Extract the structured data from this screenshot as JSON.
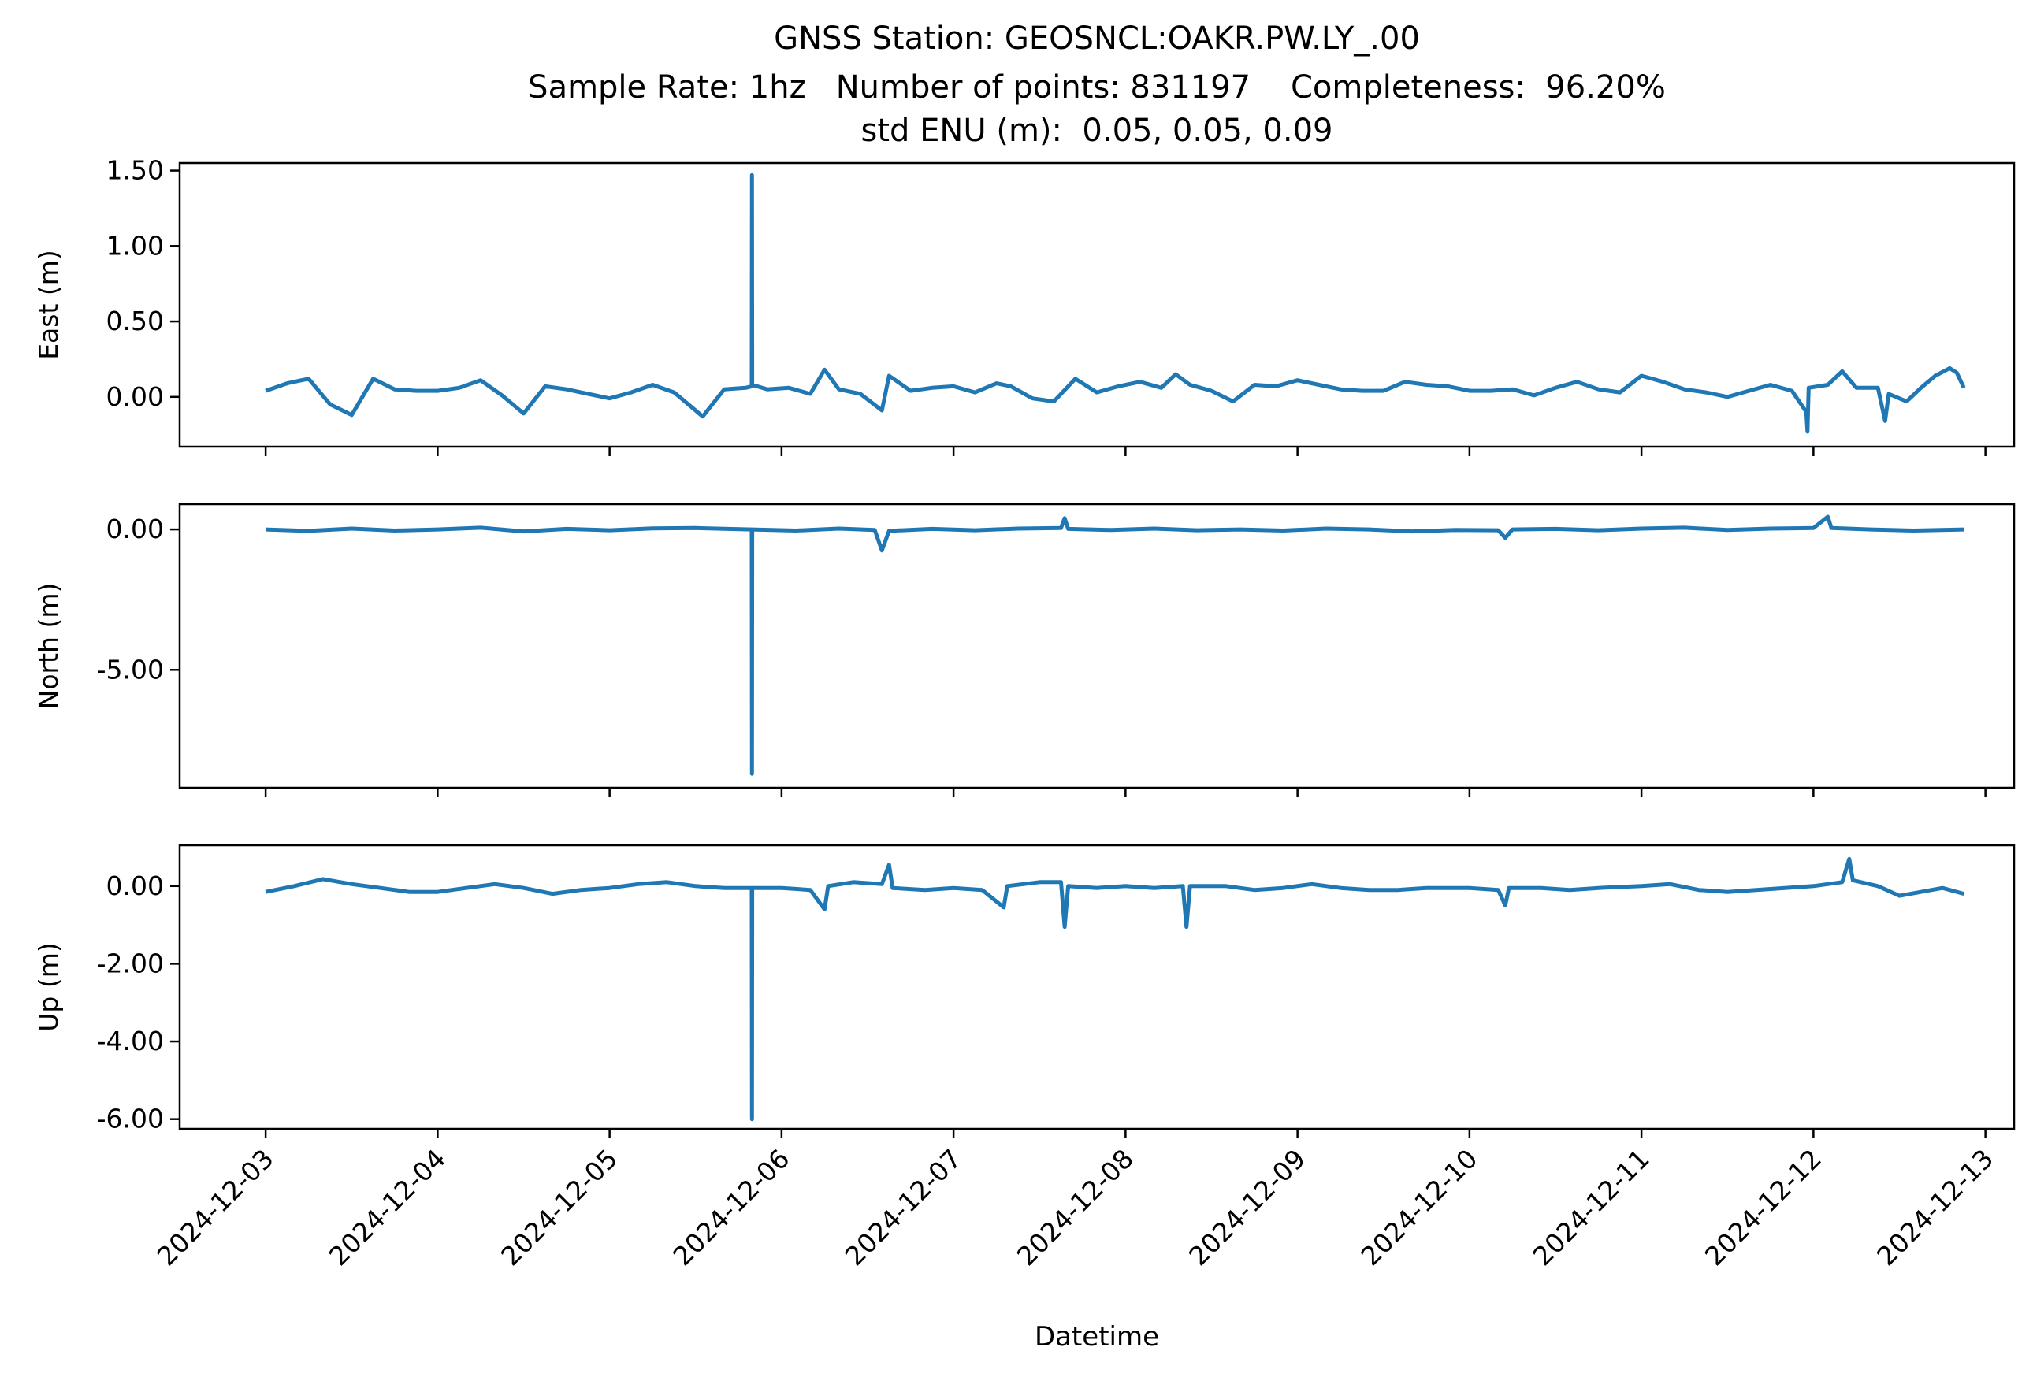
{
  "figure": {
    "title_lines": [
      "GNSS Station: GEOSNCL:OAKR.PW.LY_.00",
      "Sample Rate: 1hz   Number of points: 831197    Completeness:  96.20%",
      "std ENU (m):  0.05, 0.05, 0.09"
    ],
    "xlabel": "Datetime",
    "line_color": "#1f77b4"
  },
  "chart_data": [
    {
      "type": "line",
      "ylabel": "East (m)",
      "xlim": [
        "2024-12-02T12:00",
        "2024-12-13T04:00"
      ],
      "ylim": [
        -0.33,
        1.55
      ],
      "yticks": [
        0.0,
        0.5,
        1.0,
        1.5
      ],
      "ytick_labels": [
        "0.00",
        "0.50",
        "1.00",
        "1.50"
      ],
      "show_xtick_labels": false,
      "series": [
        {
          "values": [
            [
              "2024-12-03T00:00",
              0.04
            ],
            [
              "2024-12-03T03:00",
              0.09
            ],
            [
              "2024-12-03T06:00",
              0.12
            ],
            [
              "2024-12-03T09:00",
              -0.05
            ],
            [
              "2024-12-03T12:00",
              -0.12
            ],
            [
              "2024-12-03T15:00",
              0.12
            ],
            [
              "2024-12-03T18:00",
              0.05
            ],
            [
              "2024-12-03T21:00",
              0.04
            ],
            [
              "2024-12-04T00:00",
              0.04
            ],
            [
              "2024-12-04T03:00",
              0.06
            ],
            [
              "2024-12-04T06:00",
              0.11
            ],
            [
              "2024-12-04T09:00",
              0.01
            ],
            [
              "2024-12-04T12:00",
              -0.11
            ],
            [
              "2024-12-04T15:00",
              0.07
            ],
            [
              "2024-12-04T18:00",
              0.05
            ],
            [
              "2024-12-04T21:00",
              0.02
            ],
            [
              "2024-12-05T00:00",
              -0.01
            ],
            [
              "2024-12-05T03:00",
              0.03
            ],
            [
              "2024-12-05T06:00",
              0.08
            ],
            [
              "2024-12-05T09:00",
              0.03
            ],
            [
              "2024-12-05T11:00",
              -0.05
            ],
            [
              "2024-12-05T13:00",
              -0.13
            ],
            [
              "2024-12-05T16:00",
              0.05
            ],
            [
              "2024-12-05T19:00",
              0.06
            ],
            [
              "2024-12-05T19:50",
              0.07
            ],
            [
              "2024-12-05T19:52",
              1.47
            ],
            [
              "2024-12-05T19:54",
              0.08
            ],
            [
              "2024-12-05T22:00",
              0.05
            ],
            [
              "2024-12-06T01:00",
              0.06
            ],
            [
              "2024-12-06T04:00",
              0.02
            ],
            [
              "2024-12-06T06:00",
              0.18
            ],
            [
              "2024-12-06T08:00",
              0.05
            ],
            [
              "2024-12-06T11:00",
              0.02
            ],
            [
              "2024-12-06T14:00",
              -0.09
            ],
            [
              "2024-12-06T15:00",
              0.14
            ],
            [
              "2024-12-06T18:00",
              0.04
            ],
            [
              "2024-12-06T21:00",
              0.06
            ],
            [
              "2024-12-07T00:00",
              0.07
            ],
            [
              "2024-12-07T03:00",
              0.03
            ],
            [
              "2024-12-07T06:00",
              0.09
            ],
            [
              "2024-12-07T08:00",
              0.07
            ],
            [
              "2024-12-07T11:00",
              -0.01
            ],
            [
              "2024-12-07T14:00",
              -0.03
            ],
            [
              "2024-12-07T17:00",
              0.12
            ],
            [
              "2024-12-07T20:00",
              0.03
            ],
            [
              "2024-12-07T23:00",
              0.07
            ],
            [
              "2024-12-08T02:00",
              0.1
            ],
            [
              "2024-12-08T05:00",
              0.06
            ],
            [
              "2024-12-08T07:00",
              0.15
            ],
            [
              "2024-12-08T09:00",
              0.08
            ],
            [
              "2024-12-08T12:00",
              0.04
            ],
            [
              "2024-12-08T15:00",
              -0.03
            ],
            [
              "2024-12-08T18:00",
              0.08
            ],
            [
              "2024-12-08T21:00",
              0.07
            ],
            [
              "2024-12-09T00:00",
              0.11
            ],
            [
              "2024-12-09T03:00",
              0.08
            ],
            [
              "2024-12-09T06:00",
              0.05
            ],
            [
              "2024-12-09T09:00",
              0.04
            ],
            [
              "2024-12-09T12:00",
              0.04
            ],
            [
              "2024-12-09T15:00",
              0.1
            ],
            [
              "2024-12-09T18:00",
              0.08
            ],
            [
              "2024-12-09T21:00",
              0.07
            ],
            [
              "2024-12-10T00:00",
              0.04
            ],
            [
              "2024-12-10T03:00",
              0.04
            ],
            [
              "2024-12-10T06:00",
              0.05
            ],
            [
              "2024-12-10T09:00",
              0.01
            ],
            [
              "2024-12-10T12:00",
              0.06
            ],
            [
              "2024-12-10T15:00",
              0.1
            ],
            [
              "2024-12-10T18:00",
              0.05
            ],
            [
              "2024-12-10T21:00",
              0.03
            ],
            [
              "2024-12-11T00:00",
              0.14
            ],
            [
              "2024-12-11T03:00",
              0.1
            ],
            [
              "2024-12-11T06:00",
              0.05
            ],
            [
              "2024-12-11T09:00",
              0.03
            ],
            [
              "2024-12-11T12:00",
              0.0
            ],
            [
              "2024-12-11T15:00",
              0.04
            ],
            [
              "2024-12-11T18:00",
              0.08
            ],
            [
              "2024-12-11T21:00",
              0.04
            ],
            [
              "2024-12-11T23:00",
              -0.1
            ],
            [
              "2024-12-11T23:10",
              -0.23
            ],
            [
              "2024-12-11T23:20",
              0.06
            ],
            [
              "2024-12-12T02:00",
              0.08
            ],
            [
              "2024-12-12T04:00",
              0.17
            ],
            [
              "2024-12-12T06:00",
              0.06
            ],
            [
              "2024-12-12T09:00",
              0.06
            ],
            [
              "2024-12-12T10:00",
              -0.16
            ],
            [
              "2024-12-12T10:30",
              0.02
            ],
            [
              "2024-12-12T13:00",
              -0.03
            ],
            [
              "2024-12-12T15:00",
              0.06
            ],
            [
              "2024-12-12T17:00",
              0.14
            ],
            [
              "2024-12-12T19:00",
              0.19
            ],
            [
              "2024-12-12T20:00",
              0.16
            ],
            [
              "2024-12-12T21:00",
              0.06
            ]
          ]
        }
      ]
    },
    {
      "type": "line",
      "ylabel": "North (m)",
      "xlim": [
        "2024-12-02T12:00",
        "2024-12-13T04:00"
      ],
      "ylim": [
        -9.2,
        0.9
      ],
      "yticks": [
        0.0,
        -5.0
      ],
      "ytick_labels": [
        "0.00",
        "-5.00"
      ],
      "show_xtick_labels": false,
      "series": [
        {
          "values": [
            [
              "2024-12-03T00:00",
              0.0
            ],
            [
              "2024-12-03T06:00",
              -0.05
            ],
            [
              "2024-12-03T12:00",
              0.03
            ],
            [
              "2024-12-03T18:00",
              -0.04
            ],
            [
              "2024-12-04T00:00",
              0.0
            ],
            [
              "2024-12-04T06:00",
              0.06
            ],
            [
              "2024-12-04T12:00",
              -0.07
            ],
            [
              "2024-12-04T18:00",
              0.02
            ],
            [
              "2024-12-05T00:00",
              -0.03
            ],
            [
              "2024-12-05T06:00",
              0.04
            ],
            [
              "2024-12-05T12:00",
              0.05
            ],
            [
              "2024-12-05T19:50",
              0.0
            ],
            [
              "2024-12-05T19:52",
              -8.7
            ],
            [
              "2024-12-05T19:54",
              0.0
            ],
            [
              "2024-12-06T02:00",
              -0.04
            ],
            [
              "2024-12-06T08:00",
              0.03
            ],
            [
              "2024-12-06T13:00",
              -0.02
            ],
            [
              "2024-12-06T14:00",
              -0.75
            ],
            [
              "2024-12-06T15:00",
              -0.05
            ],
            [
              "2024-12-06T21:00",
              0.02
            ],
            [
              "2024-12-07T03:00",
              -0.03
            ],
            [
              "2024-12-07T09:00",
              0.03
            ],
            [
              "2024-12-07T15:00",
              0.05
            ],
            [
              "2024-12-07T15:30",
              0.4
            ],
            [
              "2024-12-07T16:00",
              0.02
            ],
            [
              "2024-12-07T22:00",
              -0.02
            ],
            [
              "2024-12-08T04:00",
              0.03
            ],
            [
              "2024-12-08T10:00",
              -0.03
            ],
            [
              "2024-12-08T16:00",
              0.0
            ],
            [
              "2024-12-08T22:00",
              -0.04
            ],
            [
              "2024-12-09T04:00",
              0.03
            ],
            [
              "2024-12-09T10:00",
              0.0
            ],
            [
              "2024-12-09T16:00",
              -0.07
            ],
            [
              "2024-12-09T22:00",
              -0.02
            ],
            [
              "2024-12-10T04:00",
              -0.03
            ],
            [
              "2024-12-10T05:00",
              -0.3
            ],
            [
              "2024-12-10T06:00",
              0.0
            ],
            [
              "2024-12-10T12:00",
              0.02
            ],
            [
              "2024-12-10T18:00",
              -0.03
            ],
            [
              "2024-12-11T00:00",
              0.03
            ],
            [
              "2024-12-11T06:00",
              0.06
            ],
            [
              "2024-12-11T12:00",
              -0.02
            ],
            [
              "2024-12-11T18:00",
              0.03
            ],
            [
              "2024-12-12T00:00",
              0.05
            ],
            [
              "2024-12-12T02:00",
              0.45
            ],
            [
              "2024-12-12T02:30",
              0.05
            ],
            [
              "2024-12-12T08:00",
              0.0
            ],
            [
              "2024-12-12T14:00",
              -0.04
            ],
            [
              "2024-12-12T21:00",
              0.0
            ]
          ]
        }
      ]
    },
    {
      "type": "line",
      "ylabel": "Up (m)",
      "xlim": [
        "2024-12-02T12:00",
        "2024-12-13T04:00"
      ],
      "ylim": [
        -6.25,
        1.05
      ],
      "yticks": [
        0.0,
        -2.0,
        -4.0,
        -6.0
      ],
      "ytick_labels": [
        "0.00",
        "-2.00",
        "-4.00",
        "-6.00"
      ],
      "show_xtick_labels": true,
      "xticks": [
        "2024-12-03",
        "2024-12-04",
        "2024-12-05",
        "2024-12-06",
        "2024-12-07",
        "2024-12-08",
        "2024-12-09",
        "2024-12-10",
        "2024-12-11",
        "2024-12-12",
        "2024-12-13"
      ],
      "series": [
        {
          "values": [
            [
              "2024-12-03T00:00",
              -0.15
            ],
            [
              "2024-12-03T04:00",
              0.0
            ],
            [
              "2024-12-03T08:00",
              0.18
            ],
            [
              "2024-12-03T12:00",
              0.05
            ],
            [
              "2024-12-03T16:00",
              -0.05
            ],
            [
              "2024-12-03T20:00",
              -0.15
            ],
            [
              "2024-12-04T00:00",
              -0.15
            ],
            [
              "2024-12-04T04:00",
              -0.05
            ],
            [
              "2024-12-04T08:00",
              0.05
            ],
            [
              "2024-12-04T12:00",
              -0.05
            ],
            [
              "2024-12-04T16:00",
              -0.2
            ],
            [
              "2024-12-04T20:00",
              -0.1
            ],
            [
              "2024-12-05T00:00",
              -0.05
            ],
            [
              "2024-12-05T04:00",
              0.05
            ],
            [
              "2024-12-05T08:00",
              0.1
            ],
            [
              "2024-12-05T12:00",
              0.0
            ],
            [
              "2024-12-05T16:00",
              -0.05
            ],
            [
              "2024-12-05T19:50",
              -0.05
            ],
            [
              "2024-12-05T19:52",
              -6.0
            ],
            [
              "2024-12-05T19:54",
              -0.05
            ],
            [
              "2024-12-06T00:00",
              -0.05
            ],
            [
              "2024-12-06T04:00",
              -0.1
            ],
            [
              "2024-12-06T06:00",
              -0.6
            ],
            [
              "2024-12-06T06:30",
              0.0
            ],
            [
              "2024-12-06T10:00",
              0.1
            ],
            [
              "2024-12-06T14:00",
              0.05
            ],
            [
              "2024-12-06T15:00",
              0.55
            ],
            [
              "2024-12-06T15:30",
              -0.05
            ],
            [
              "2024-12-06T20:00",
              -0.1
            ],
            [
              "2024-12-07T00:00",
              -0.05
            ],
            [
              "2024-12-07T04:00",
              -0.1
            ],
            [
              "2024-12-07T07:00",
              -0.55
            ],
            [
              "2024-12-07T07:30",
              0.0
            ],
            [
              "2024-12-07T12:00",
              0.1
            ],
            [
              "2024-12-07T15:00",
              0.1
            ],
            [
              "2024-12-07T15:30",
              -1.05
            ],
            [
              "2024-12-07T16:00",
              0.0
            ],
            [
              "2024-12-07T20:00",
              -0.05
            ],
            [
              "2024-12-08T00:00",
              0.0
            ],
            [
              "2024-12-08T04:00",
              -0.05
            ],
            [
              "2024-12-08T08:00",
              0.0
            ],
            [
              "2024-12-08T08:30",
              -1.05
            ],
            [
              "2024-12-08T09:00",
              0.0
            ],
            [
              "2024-12-08T14:00",
              0.0
            ],
            [
              "2024-12-08T18:00",
              -0.1
            ],
            [
              "2024-12-08T22:00",
              -0.05
            ],
            [
              "2024-12-09T02:00",
              0.05
            ],
            [
              "2024-12-09T06:00",
              -0.05
            ],
            [
              "2024-12-09T10:00",
              -0.1
            ],
            [
              "2024-12-09T14:00",
              -0.1
            ],
            [
              "2024-12-09T18:00",
              -0.05
            ],
            [
              "2024-12-10T00:00",
              -0.05
            ],
            [
              "2024-12-10T04:00",
              -0.1
            ],
            [
              "2024-12-10T05:00",
              -0.5
            ],
            [
              "2024-12-10T05:30",
              -0.05
            ],
            [
              "2024-12-10T10:00",
              -0.05
            ],
            [
              "2024-12-10T14:00",
              -0.1
            ],
            [
              "2024-12-10T18:00",
              -0.05
            ],
            [
              "2024-12-11T00:00",
              0.0
            ],
            [
              "2024-12-11T04:00",
              0.05
            ],
            [
              "2024-12-11T08:00",
              -0.1
            ],
            [
              "2024-12-11T12:00",
              -0.15
            ],
            [
              "2024-12-11T16:00",
              -0.1
            ],
            [
              "2024-12-11T20:00",
              -0.05
            ],
            [
              "2024-12-12T00:00",
              0.0
            ],
            [
              "2024-12-12T04:00",
              0.1
            ],
            [
              "2024-12-12T05:00",
              0.7
            ],
            [
              "2024-12-12T05:30",
              0.15
            ],
            [
              "2024-12-12T09:00",
              0.0
            ],
            [
              "2024-12-12T12:00",
              -0.25
            ],
            [
              "2024-12-12T15:00",
              -0.15
            ],
            [
              "2024-12-12T18:00",
              -0.05
            ],
            [
              "2024-12-12T21:00",
              -0.2
            ]
          ]
        }
      ]
    }
  ]
}
